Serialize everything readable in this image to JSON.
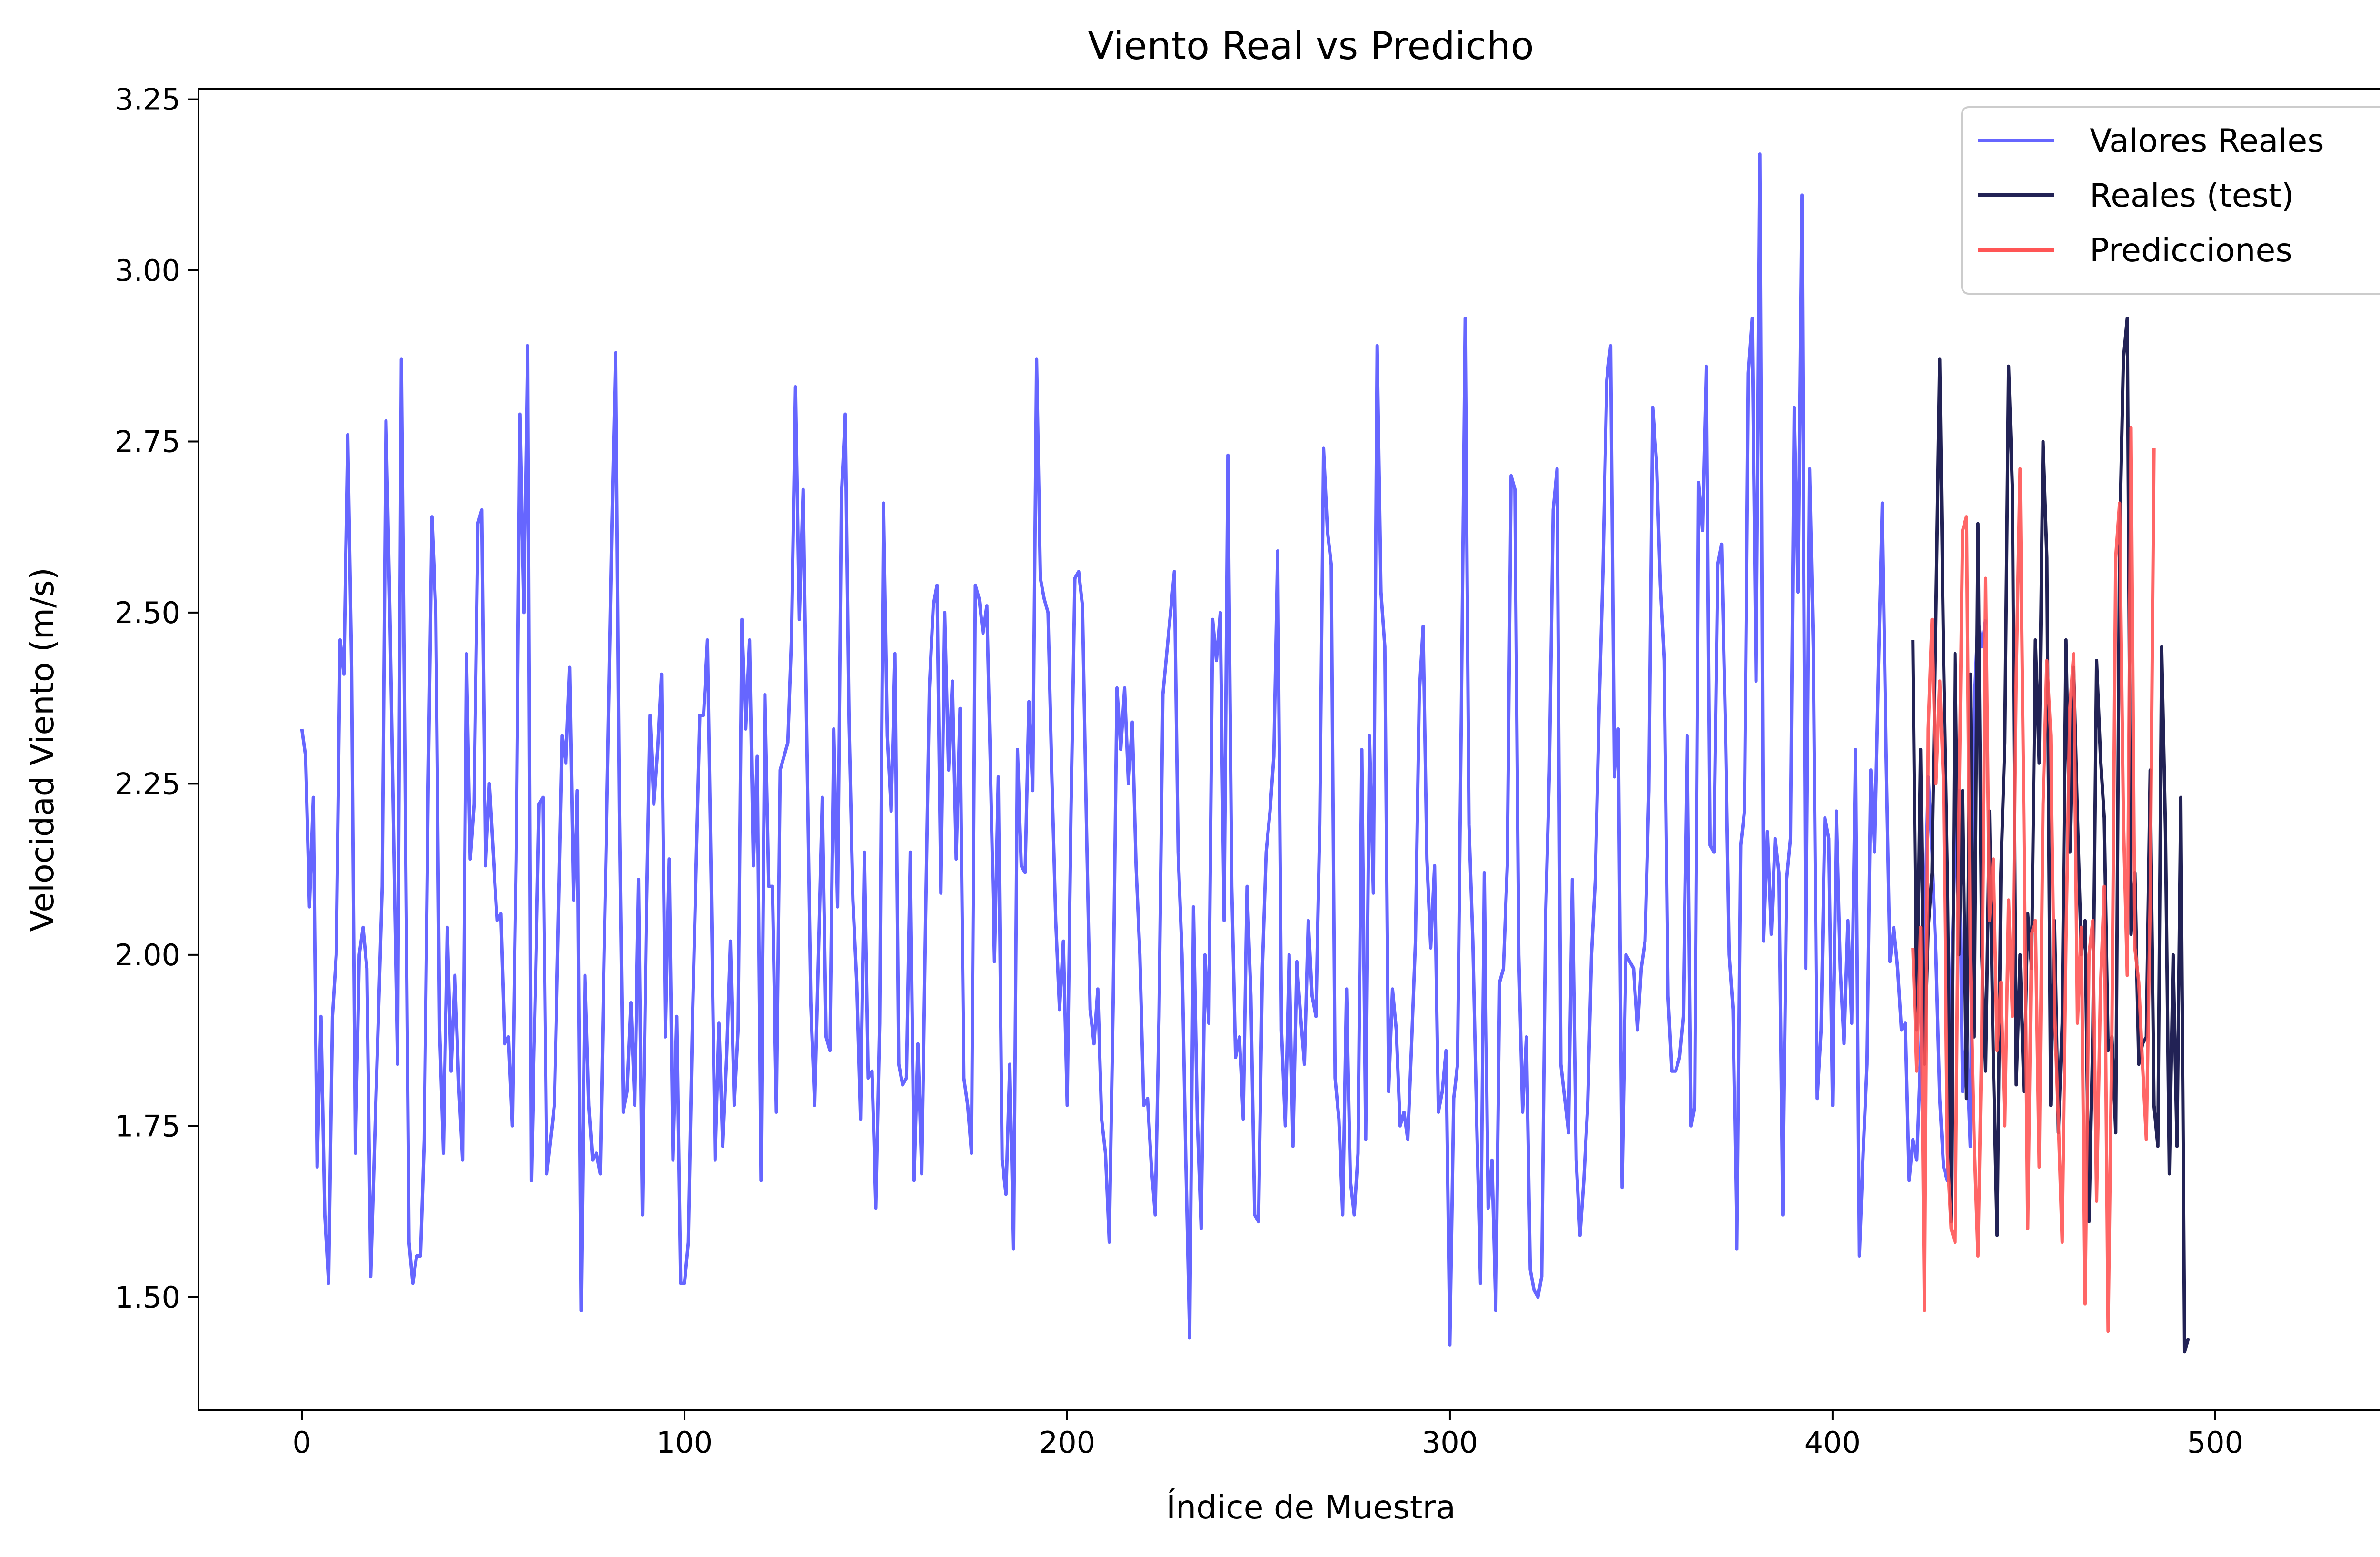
{
  "chart_data": {
    "type": "line",
    "title": "Viento Real vs Predicho",
    "xlabel": "Índice de Muestra",
    "ylabel": "Velocidad Viento (m/s)",
    "xlim": [
      -27,
      554
    ],
    "ylim": [
      1.335,
      3.265
    ],
    "x_ticks": [
      "0",
      "100",
      "200",
      "300",
      "400",
      "500"
    ],
    "y_ticks": [
      "1.50",
      "1.75",
      "2.00",
      "2.25",
      "2.50",
      "2.75",
      "3.00",
      "3.25"
    ],
    "grid": false,
    "legend_position": "top-right",
    "series": [
      {
        "name": "Valores Reales",
        "color": "#6666ff",
        "x_start": 0,
        "values": [
          2.33,
          2.29,
          2.07,
          2.23,
          1.69,
          1.91,
          1.62,
          1.52,
          1.91,
          2.0,
          2.46,
          2.41,
          2.76,
          2.42,
          1.71,
          2.0,
          2.04,
          1.98,
          1.53,
          1.72,
          1.91,
          2.1,
          2.78,
          2.5,
          2.17,
          1.84,
          2.87,
          2.25,
          1.58,
          1.52,
          1.56,
          1.56,
          1.73,
          2.24,
          2.64,
          2.5,
          1.89,
          1.71,
          2.04,
          1.83,
          1.97,
          1.81,
          1.7,
          2.44,
          2.14,
          2.22,
          2.63,
          2.65,
          2.13,
          2.25,
          2.15,
          2.05,
          2.06,
          1.87,
          1.88,
          1.75,
          2.14,
          2.79,
          2.5,
          2.89,
          1.67,
          1.94,
          2.22,
          2.23,
          1.68,
          1.73,
          1.78,
          2.04,
          2.32,
          2.28,
          2.42,
          2.08,
          2.24,
          1.48,
          1.97,
          1.78,
          1.7,
          1.71,
          1.68,
          2.0,
          2.3,
          2.62,
          2.88,
          2.21,
          1.77,
          1.8,
          1.93,
          1.78,
          2.11,
          1.62,
          2.04,
          2.35,
          2.22,
          2.3,
          2.41,
          1.88,
          2.14,
          1.7,
          1.91,
          1.52,
          1.52,
          1.58,
          1.88,
          2.12,
          2.35,
          2.35,
          2.46,
          2.1,
          1.7,
          1.9,
          1.72,
          1.85,
          2.02,
          1.78,
          1.89,
          2.49,
          2.33,
          2.46,
          2.13,
          2.29,
          1.67,
          2.38,
          2.1,
          2.1,
          1.77,
          2.27,
          2.29,
          2.31,
          2.47,
          2.83,
          2.49,
          2.68,
          2.3,
          1.93,
          1.78,
          2.0,
          2.23,
          1.88,
          1.86,
          2.33,
          2.07,
          2.67,
          2.79,
          2.34,
          2.08,
          1.96,
          1.76,
          2.15,
          1.82,
          1.83,
          1.63,
          1.9,
          2.66,
          2.32,
          2.21,
          2.44,
          1.84,
          1.81,
          1.82,
          2.15,
          1.67,
          1.87,
          1.68,
          2.05,
          2.39,
          2.51,
          2.54,
          2.09,
          2.5,
          2.27,
          2.4,
          2.14,
          2.36,
          1.82,
          1.78,
          1.71,
          2.54,
          2.52,
          2.47,
          2.51,
          2.26,
          1.99,
          2.26,
          1.7,
          1.65,
          1.84,
          1.57,
          2.3,
          2.13,
          2.12,
          2.37,
          2.24,
          2.87,
          2.55,
          2.52,
          2.5,
          2.26,
          2.05,
          1.92,
          2.02,
          1.78,
          2.21,
          2.55,
          2.56,
          2.51,
          2.2,
          1.92,
          1.87,
          1.95,
          1.76,
          1.71,
          1.58,
          1.93,
          2.39,
          2.3,
          2.39,
          2.25,
          2.34,
          2.13,
          2.0,
          1.78,
          1.79,
          1.69,
          1.62,
          1.91,
          2.38,
          2.44,
          2.5,
          2.56,
          2.15,
          2.0,
          1.7,
          1.44,
          2.07,
          1.76,
          1.6,
          2.0,
          1.9,
          2.49,
          2.43,
          2.5,
          2.05,
          2.73,
          2.1,
          1.85,
          1.88,
          1.76,
          2.1,
          1.94,
          1.62,
          1.61,
          1.98,
          2.15,
          2.21,
          2.29,
          2.59,
          1.89,
          1.75,
          2.0,
          1.72,
          1.99,
          1.91,
          1.84,
          2.05,
          1.94,
          1.91,
          2.19,
          2.74,
          2.62,
          2.57,
          1.82,
          1.76,
          1.62,
          1.95,
          1.67,
          1.62,
          1.71,
          2.3,
          1.73,
          2.32,
          2.09,
          2.89,
          2.53,
          2.45,
          1.8,
          1.95,
          1.89,
          1.75,
          1.77,
          1.73,
          1.87,
          2.02,
          2.38,
          2.48,
          2.14,
          2.01,
          2.13,
          1.77,
          1.8,
          1.86,
          1.43,
          1.79,
          1.84,
          2.36,
          2.93,
          2.19,
          2.02,
          1.76,
          1.52,
          2.12,
          1.63,
          1.7,
          1.48,
          1.96,
          1.98,
          2.13,
          2.7,
          2.68,
          2.0,
          1.77,
          1.88,
          1.54,
          1.51,
          1.5,
          1.53,
          2.05,
          2.27,
          2.65,
          2.71,
          1.84,
          1.79,
          1.74,
          2.11,
          1.7,
          1.59,
          1.67,
          1.78,
          2.0,
          2.11,
          2.36,
          2.56,
          2.84,
          2.89,
          2.26,
          2.33,
          1.66,
          2.0,
          1.99,
          1.98,
          1.89,
          1.98,
          2.02,
          2.24,
          2.8,
          2.72,
          2.54,
          2.43,
          1.94,
          1.83,
          1.83,
          1.85,
          1.91,
          2.32,
          1.75,
          1.78,
          2.69,
          2.62,
          2.86,
          2.16,
          2.15,
          2.57,
          2.6,
          2.34,
          2.0,
          1.92,
          1.57,
          2.16,
          2.21,
          2.85,
          2.93,
          2.4,
          3.17,
          2.02,
          2.18,
          2.03,
          2.17,
          2.12,
          1.62,
          2.11,
          2.17,
          2.8,
          2.53,
          3.11,
          1.98,
          2.71,
          2.44,
          1.79,
          1.89,
          2.2,
          2.17,
          1.78,
          2.21,
          1.98,
          1.87,
          2.05,
          1.9,
          2.3,
          1.56,
          1.71,
          1.84,
          2.27,
          2.15,
          2.42,
          2.66,
          2.29,
          1.99,
          2.04,
          1.98,
          1.89,
          1.9,
          1.67,
          1.73,
          1.7,
          1.85,
          2.02,
          2.26,
          2.15,
          2.0,
          1.79,
          1.69,
          1.67,
          1.94,
          2.16,
          2.24,
          1.8,
          1.88,
          1.72,
          2.36,
          2.49,
          2.45,
          2.49
        ]
      },
      {
        "name": "Reales (test)",
        "color": "#222255",
        "x_start": 421,
        "values": [
          2.46,
          1.89,
          2.3,
          1.84,
          2.04,
          2.12,
          2.5,
          2.87,
          2.44,
          2.11,
          1.61,
          2.44,
          2.0,
          2.24,
          1.79,
          2.41,
          1.88,
          2.63,
          2.0,
          1.83,
          2.21,
          1.85,
          1.59,
          2.12,
          2.31,
          2.86,
          2.68,
          1.81,
          2.0,
          1.8,
          2.06,
          1.98,
          2.46,
          2.28,
          2.75,
          2.58,
          1.78,
          2.05,
          1.74,
          1.9,
          2.46,
          2.15,
          2.42,
          2.2,
          2.0,
          2.05,
          1.61,
          1.88,
          2.43,
          2.29,
          2.2,
          1.86,
          1.88,
          1.74,
          2.6,
          2.87,
          2.93,
          2.03,
          2.12,
          1.84,
          1.87,
          1.88,
          2.27,
          1.78,
          1.72,
          2.45,
          2.18,
          1.68,
          2.0,
          1.72,
          2.23,
          1.42,
          1.44
        ]
      },
      {
        "name": "Predicciones",
        "color": "#ff5555",
        "x_start": 421,
        "values": [
          2.01,
          1.83,
          2.04,
          1.48,
          2.33,
          2.49,
          2.25,
          2.4,
          2.25,
          1.71,
          1.6,
          1.58,
          2.19,
          2.62,
          2.64,
          2.0,
          1.73,
          1.56,
          1.88,
          2.55,
          2.05,
          2.14,
          1.86,
          1.96,
          1.75,
          2.08,
          1.91,
          2.41,
          2.71,
          2.2,
          1.6,
          2.03,
          2.05,
          1.69,
          2.22,
          2.43,
          2.32,
          1.92,
          1.76,
          1.58,
          2.02,
          2.36,
          2.44,
          1.9,
          2.04,
          1.49,
          2.0,
          2.05,
          1.64,
          1.95,
          2.1,
          1.45,
          1.89,
          2.58,
          2.66,
          2.2,
          1.97,
          2.77,
          2.01,
          1.96,
          1.84,
          1.73,
          2.08,
          2.74
        ]
      }
    ]
  }
}
